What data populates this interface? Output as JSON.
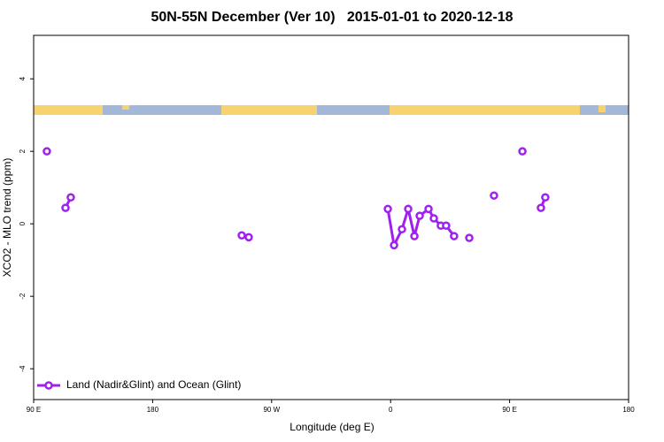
{
  "chart_data": {
    "type": "line",
    "title": "50N-55N December (Ver 10)   2015-01-01 to 2020-12-18",
    "x_label": "Longitude (deg E)",
    "y_label": "XCO2 - MLO trend (ppm)",
    "xlim": [
      90,
      540
    ],
    "ylim": [
      -4.85,
      5.2
    ],
    "xticks": [
      {
        "value": 90,
        "label": "90 E"
      },
      {
        "value": 180,
        "label": "180"
      },
      {
        "value": 270,
        "label": "90 W"
      },
      {
        "value": 360,
        "label": "0"
      },
      {
        "value": 450,
        "label": "90 E"
      },
      {
        "value": 540,
        "label": "180"
      }
    ],
    "yticks": [
      -4,
      -2,
      0,
      2,
      4
    ],
    "legend": "bottom-left",
    "series": [
      {
        "name": "Land (Nadir&Glint) and Ocean (Glint)",
        "color": "#a020f0",
        "x": [
          100,
          null,
          114.1,
          118.1,
          null,
          247.4,
          252.7,
          null,
          357.9,
          362.6,
          368.6,
          373.3,
          378,
          382,
          388.7,
          392.7,
          398,
          402,
          408,
          null,
          419.5,
          null,
          438.2,
          null,
          459.7,
          null,
          473.7,
          477
        ],
        "values": [
          2.0,
          null,
          0.44,
          0.73,
          null,
          -0.32,
          -0.37,
          null,
          0.41,
          -0.59,
          -0.15,
          0.41,
          -0.34,
          0.22,
          0.41,
          0.15,
          -0.05,
          -0.05,
          -0.34,
          null,
          -0.39,
          null,
          0.78,
          null,
          2.0,
          null,
          0.44,
          0.73
        ]
      }
    ]
  }
}
